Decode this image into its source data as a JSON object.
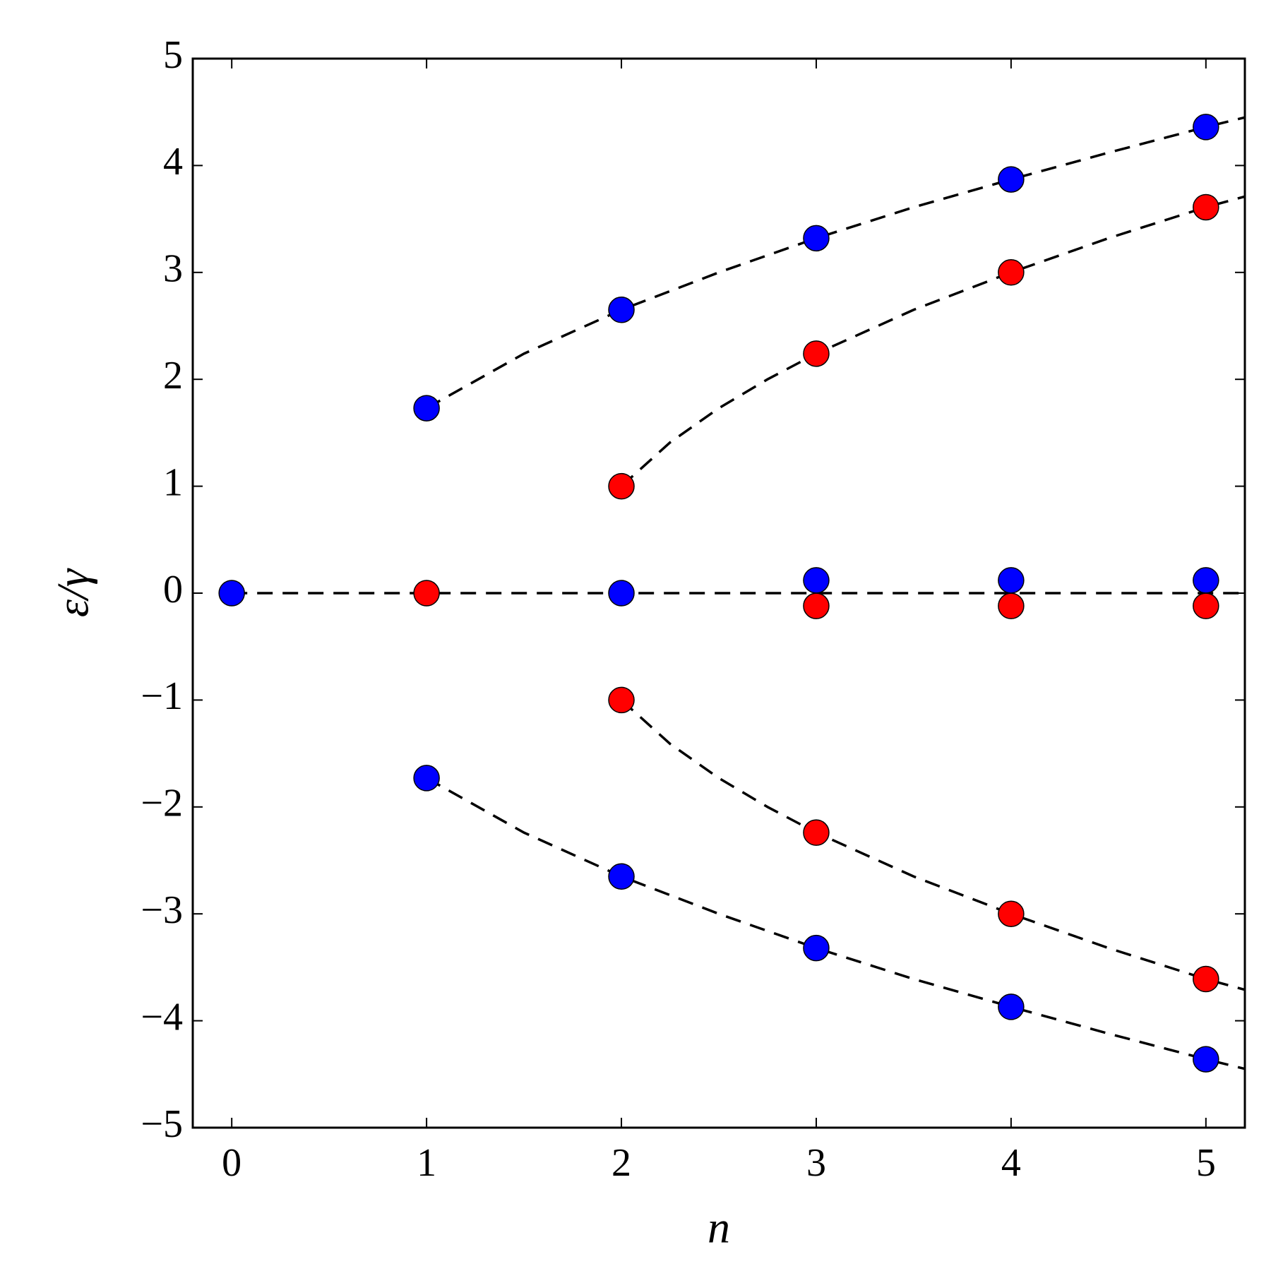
{
  "chart_data": {
    "type": "scatter",
    "xlabel": "n",
    "ylabel": "ε/γ",
    "xlim": [
      -0.2,
      5.2
    ],
    "ylim": [
      -5,
      5
    ],
    "xticks": [
      0,
      1,
      2,
      3,
      4,
      5
    ],
    "yticks": [
      {
        "value": -5,
        "label": "−5"
      },
      {
        "value": -4,
        "label": "−4"
      },
      {
        "value": -3,
        "label": "−3"
      },
      {
        "value": -2,
        "label": "−2"
      },
      {
        "value": -1,
        "label": "−1"
      },
      0,
      1,
      2,
      3,
      4,
      5
    ],
    "series": [
      {
        "type": "line",
        "color": "#000000",
        "dashed": true,
        "x": [
          0,
          5.2
        ],
        "values": [
          0,
          0
        ]
      },
      {
        "type": "line",
        "color": "#000000",
        "dashed": true,
        "x": [
          1,
          1.5,
          2,
          2.5,
          3,
          3.5,
          4,
          4.5,
          5,
          5.2
        ],
        "values": [
          1.73,
          2.24,
          2.65,
          3.0,
          3.32,
          3.61,
          3.87,
          4.12,
          4.36,
          4.45
        ]
      },
      {
        "type": "line",
        "color": "#000000",
        "dashed": true,
        "x": [
          1,
          1.5,
          2,
          2.5,
          3,
          3.5,
          4,
          4.5,
          5,
          5.2
        ],
        "values": [
          -1.73,
          -2.24,
          -2.65,
          -3.0,
          -3.32,
          -3.61,
          -3.87,
          -4.12,
          -4.36,
          -4.45
        ]
      },
      {
        "type": "line",
        "color": "#000000",
        "dashed": true,
        "x": [
          2,
          2.25,
          2.5,
          2.75,
          3,
          3.5,
          4,
          4.5,
          5,
          5.2
        ],
        "values": [
          1,
          1.41,
          1.73,
          2.0,
          2.24,
          2.65,
          3.0,
          3.32,
          3.61,
          3.71
        ]
      },
      {
        "type": "line",
        "color": "#000000",
        "dashed": true,
        "x": [
          2,
          2.25,
          2.5,
          2.75,
          3,
          3.5,
          4,
          4.5,
          5,
          5.2
        ],
        "values": [
          -1,
          -1.41,
          -1.73,
          -2.0,
          -2.24,
          -2.65,
          -3.0,
          -3.32,
          -3.61,
          -3.71
        ]
      },
      {
        "type": "scatter",
        "color": "#0000ff",
        "x": [
          0,
          1,
          1,
          2,
          2,
          2,
          3,
          3,
          3,
          4,
          4,
          4,
          5,
          5,
          5
        ],
        "values": [
          0,
          1.73,
          -1.73,
          2.65,
          0,
          -2.65,
          3.32,
          0.12,
          -3.32,
          3.87,
          0.12,
          -3.87,
          4.36,
          0.12,
          -4.36
        ]
      },
      {
        "type": "scatter",
        "color": "#ff0000",
        "x": [
          1,
          2,
          2,
          3,
          3,
          3,
          4,
          4,
          4,
          5,
          5,
          5
        ],
        "values": [
          0,
          1,
          -1,
          2.24,
          -0.12,
          -2.24,
          3,
          -0.12,
          -3,
          3.61,
          -0.12,
          -3.61
        ]
      }
    ]
  }
}
